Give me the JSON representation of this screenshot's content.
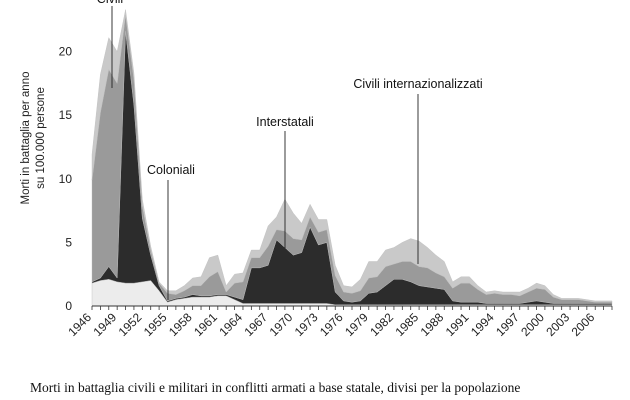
{
  "chart_data": {
    "type": "area",
    "stacked": true,
    "ylabel_lines": [
      "Morti in battaglia per anno",
      "su 100.000 persone"
    ],
    "ylim": [
      0,
      25
    ],
    "xlim": [
      1946,
      2008
    ],
    "y_ticks": [
      0,
      5,
      10,
      15,
      20
    ],
    "x_ticks": [
      1946,
      1949,
      1952,
      1955,
      1958,
      1961,
      1964,
      1967,
      1970,
      1973,
      1976,
      1979,
      1982,
      1985,
      1988,
      1991,
      1994,
      1997,
      2000,
      2003,
      2006
    ],
    "x": [
      1946,
      1947,
      1948,
      1949,
      1950,
      1951,
      1952,
      1953,
      1954,
      1955,
      1956,
      1957,
      1958,
      1959,
      1960,
      1961,
      1962,
      1963,
      1964,
      1965,
      1966,
      1967,
      1968,
      1969,
      1970,
      1971,
      1972,
      1973,
      1974,
      1975,
      1976,
      1977,
      1978,
      1979,
      1980,
      1981,
      1982,
      1983,
      1984,
      1985,
      1986,
      1987,
      1988,
      1989,
      1990,
      1991,
      1992,
      1993,
      1994,
      1995,
      1996,
      1997,
      1998,
      1999,
      2000,
      2001,
      2002,
      2003,
      2004,
      2005,
      2006,
      2007,
      2008
    ],
    "series": [
      {
        "color": "#ececec",
        "values": [
          1.8,
          2.0,
          2.1,
          1.9,
          1.8,
          1.8,
          1.9,
          2.0,
          1.2,
          0.3,
          0.5,
          0.6,
          0.7,
          0.7,
          0.7,
          0.8,
          0.8,
          0.5,
          0.2,
          0.2,
          0.2,
          0.2,
          0.2,
          0.2,
          0.2,
          0.2,
          0.2,
          0.2,
          0.2,
          0.1,
          0.1,
          0.1,
          0.1,
          0.1,
          0.1,
          0.1,
          0.1,
          0.1,
          0.1,
          0.1,
          0.1,
          0.1,
          0.1,
          0.1,
          0.1,
          0.1,
          0.1,
          0.1,
          0.1,
          0.1,
          0.1,
          0.1,
          0.1,
          0.1,
          0.1,
          0.1,
          0.1,
          0.1,
          0.1,
          0.1,
          0.1,
          0.1,
          0.1
        ]
      },
      {
        "color": "#2c2c2c",
        "values": [
          0.1,
          0.2,
          1.0,
          0.3,
          19.8,
          14.0,
          5.0,
          2.0,
          0.4,
          0.1,
          0.1,
          0.1,
          0.2,
          0.1,
          0.1,
          0.1,
          0.1,
          0.2,
          0.3,
          2.8,
          2.8,
          3.0,
          5.0,
          4.4,
          3.8,
          4.0,
          6.0,
          4.6,
          4.8,
          1.0,
          0.3,
          0.2,
          0.3,
          0.9,
          1.0,
          1.5,
          2.0,
          2.0,
          1.8,
          1.5,
          1.4,
          1.3,
          1.2,
          0.3,
          0.2,
          0.2,
          0.2,
          0.1,
          0.1,
          0.1,
          0.1,
          0.1,
          0.2,
          0.3,
          0.2,
          0.1,
          0.1,
          0.1,
          0.1,
          0.1,
          0.1,
          0.1,
          0.1
        ]
      },
      {
        "color": "#9a9a9a",
        "values": [
          8.0,
          13.0,
          15.5,
          15.3,
          1.3,
          2.0,
          1.0,
          0.4,
          0.2,
          0.6,
          0.3,
          0.5,
          0.7,
          0.8,
          1.5,
          1.8,
          0.2,
          1.1,
          1.4,
          0.8,
          0.8,
          1.5,
          0.8,
          1.3,
          1.3,
          1.0,
          0.8,
          1.0,
          1.0,
          1.3,
          0.7,
          0.7,
          0.8,
          1.2,
          1.2,
          1.5,
          1.2,
          1.4,
          1.6,
          1.5,
          1.5,
          1.2,
          1.0,
          1.0,
          1.5,
          1.5,
          1.0,
          0.7,
          0.8,
          0.7,
          0.7,
          0.6,
          0.8,
          1.0,
          1.0,
          0.5,
          0.3,
          0.3,
          0.3,
          0.2,
          0.1,
          0.1,
          0.1
        ]
      },
      {
        "color": "#c9c9c9",
        "values": [
          2.0,
          3.0,
          2.5,
          2.5,
          0.4,
          0.5,
          0.5,
          0.3,
          0.1,
          0.2,
          0.3,
          0.4,
          0.6,
          0.7,
          1.5,
          1.3,
          0.5,
          0.7,
          0.7,
          0.6,
          0.6,
          1.6,
          1.0,
          2.5,
          2.0,
          1.3,
          1.0,
          1.0,
          0.8,
          0.8,
          0.5,
          0.5,
          0.9,
          1.3,
          1.2,
          1.3,
          1.3,
          1.5,
          1.8,
          2.0,
          1.6,
          1.4,
          1.2,
          0.5,
          0.5,
          0.5,
          0.3,
          0.2,
          0.2,
          0.2,
          0.2,
          0.3,
          0.3,
          0.4,
          0.3,
          0.2,
          0.1,
          0.1,
          0.1,
          0.1,
          0.1,
          0.1,
          0.1
        ]
      }
    ],
    "annotations": [
      {
        "text": "Civili",
        "x": 1949.3,
        "y": 17.5
      },
      {
        "text": "Coloniali",
        "x": 1955.0,
        "y": 0.6
      },
      {
        "text": "Interstatali",
        "x": 1969.0,
        "y": 4.5
      },
      {
        "text": "Civili internazionalizzati",
        "x": 1984.8,
        "y": 3.5
      }
    ]
  },
  "caption": "Morti in battaglia civili e militari in conflitti armati a base statale, divisi per la popolazione"
}
